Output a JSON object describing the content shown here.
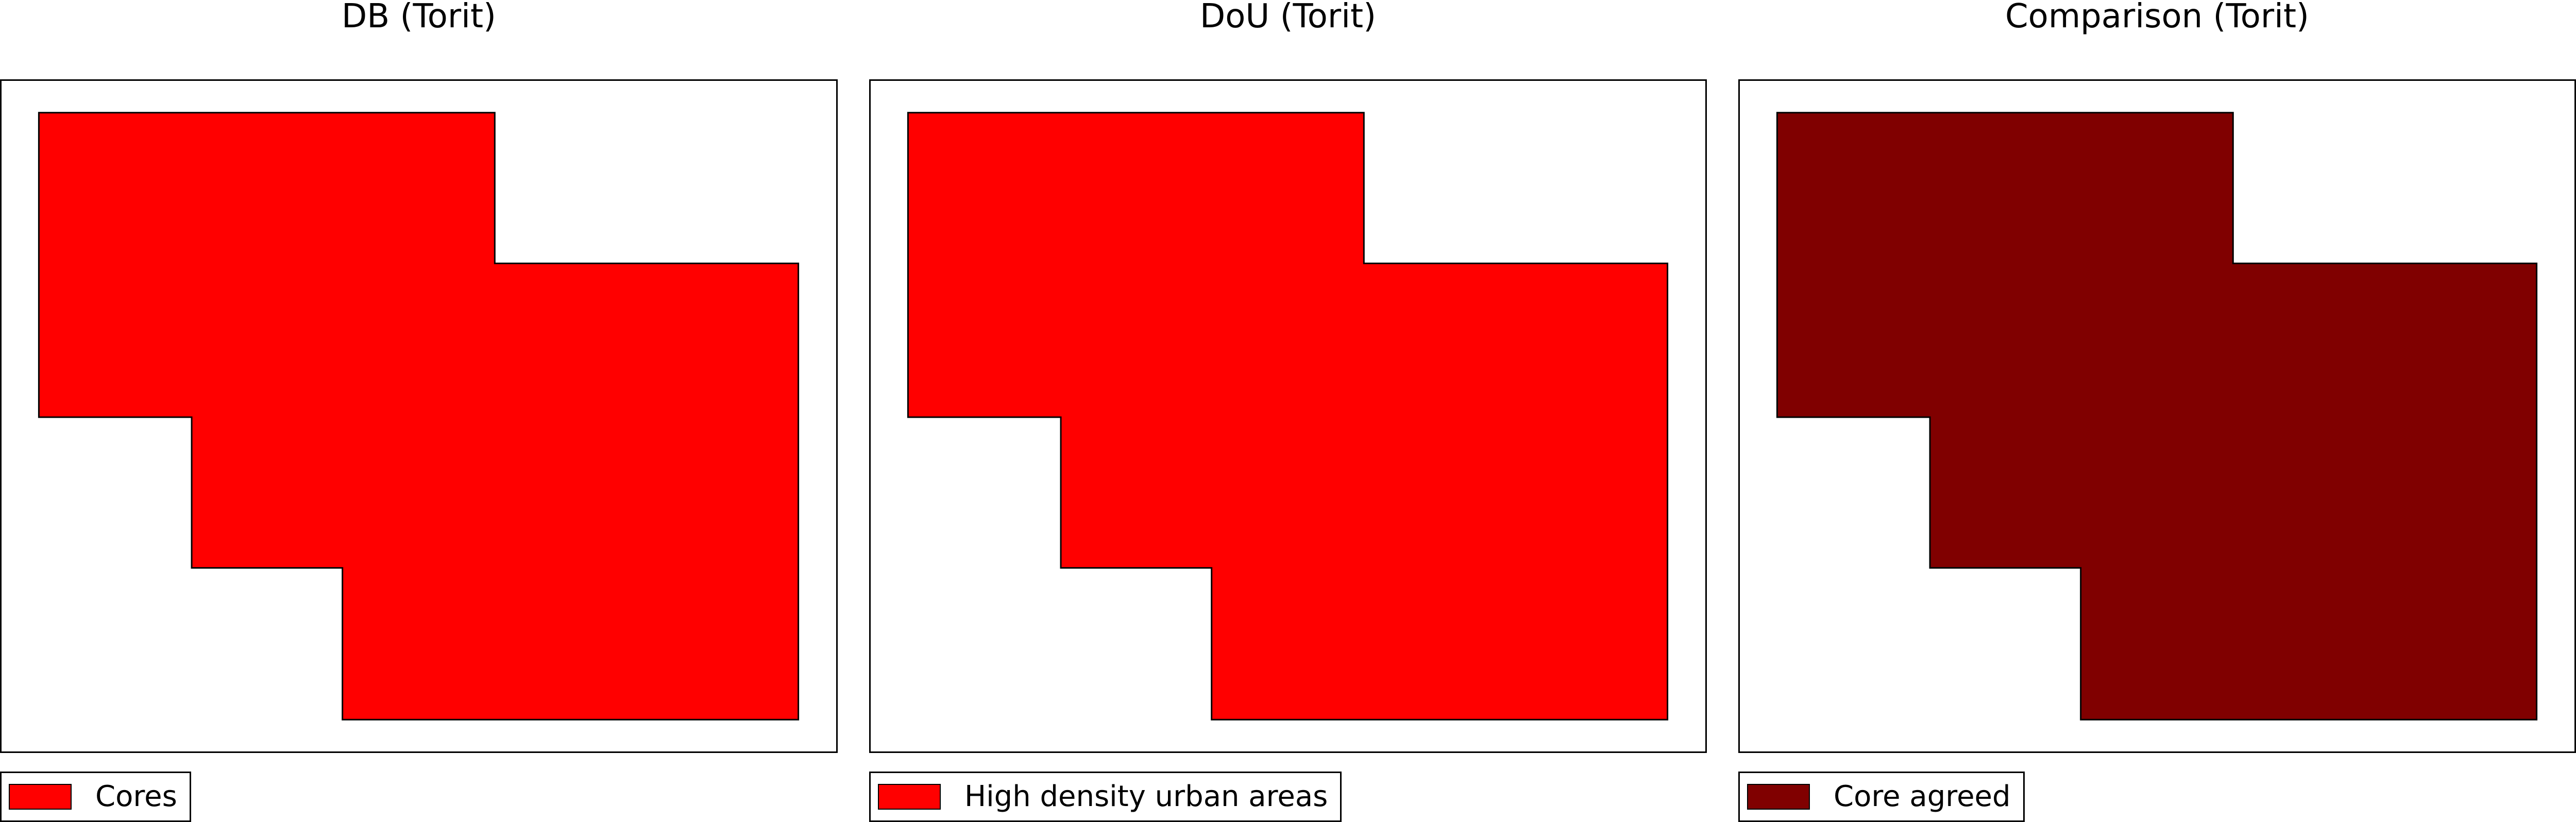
{
  "panels": [
    {
      "title": "DB (Torit)",
      "fill_color": "#ff0000",
      "legend_label": "Cores"
    },
    {
      "title": "DoU (Torit)",
      "fill_color": "#ff0000",
      "legend_label": "High density urban areas"
    },
    {
      "title": "Comparison (Torit)",
      "fill_color": "#800000",
      "legend_label": "Core agreed"
    }
  ]
}
